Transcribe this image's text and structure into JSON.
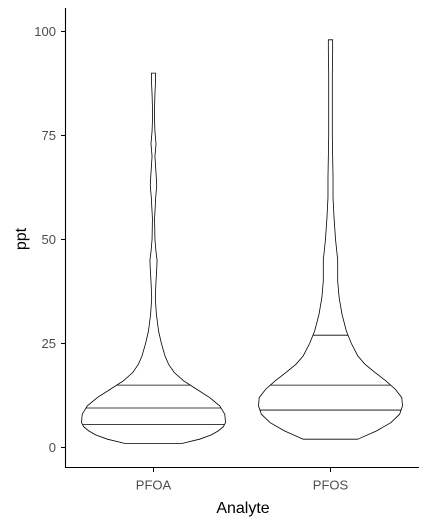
{
  "chart_data": {
    "type": "violin",
    "title": "",
    "xlabel": "Analyte",
    "ylabel": "ppt",
    "ylim": [
      -5,
      105
    ],
    "yticks": [
      0,
      25,
      50,
      75,
      100
    ],
    "categories": [
      "PFOA",
      "PFOS"
    ],
    "grid": false,
    "legend": "none",
    "series": [
      {
        "category": "PFOA",
        "min": 1,
        "max": 90,
        "quantiles": {
          "q25": 5.5,
          "q50": 9.5,
          "q75": 15
        },
        "density_profile": [
          [
            1,
            0.4
          ],
          [
            2,
            0.64
          ],
          [
            3,
            0.8
          ],
          [
            4,
            0.9
          ],
          [
            5,
            0.97
          ],
          [
            6,
            1.0
          ],
          [
            8,
            0.99
          ],
          [
            10,
            0.92
          ],
          [
            12,
            0.78
          ],
          [
            14,
            0.6
          ],
          [
            16,
            0.42
          ],
          [
            18,
            0.29
          ],
          [
            20,
            0.21
          ],
          [
            22,
            0.16
          ],
          [
            25,
            0.11
          ],
          [
            28,
            0.07
          ],
          [
            32,
            0.04
          ],
          [
            36,
            0.025
          ],
          [
            40,
            0.035
          ],
          [
            43,
            0.045
          ],
          [
            45,
            0.05
          ],
          [
            47,
            0.035
          ],
          [
            50,
            0.02
          ],
          [
            55,
            0.015
          ],
          [
            60,
            0.03
          ],
          [
            63,
            0.045
          ],
          [
            66,
            0.035
          ],
          [
            70,
            0.02
          ],
          [
            73,
            0.035
          ],
          [
            76,
            0.02
          ],
          [
            80,
            0.012
          ],
          [
            85,
            0.02
          ],
          [
            88,
            0.028
          ],
          [
            90,
            0.028
          ]
        ]
      },
      {
        "category": "PFOS",
        "min": 2,
        "max": 98,
        "quantiles": {
          "q25": 9,
          "q50": 15,
          "q75": 27
        },
        "density_profile": [
          [
            2,
            0.38
          ],
          [
            4,
            0.64
          ],
          [
            6,
            0.84
          ],
          [
            8,
            0.96
          ],
          [
            10,
            1.0
          ],
          [
            12,
            0.99
          ],
          [
            14,
            0.9
          ],
          [
            16,
            0.77
          ],
          [
            18,
            0.62
          ],
          [
            20,
            0.48
          ],
          [
            22,
            0.38
          ],
          [
            25,
            0.29
          ],
          [
            28,
            0.22
          ],
          [
            32,
            0.16
          ],
          [
            36,
            0.12
          ],
          [
            40,
            0.1
          ],
          [
            45,
            0.1
          ],
          [
            50,
            0.07
          ],
          [
            55,
            0.05
          ],
          [
            60,
            0.035
          ],
          [
            65,
            0.035
          ],
          [
            70,
            0.03
          ],
          [
            75,
            0.025
          ],
          [
            80,
            0.025
          ],
          [
            85,
            0.025
          ],
          [
            90,
            0.025
          ],
          [
            95,
            0.03
          ],
          [
            98,
            0.03
          ]
        ]
      }
    ]
  }
}
